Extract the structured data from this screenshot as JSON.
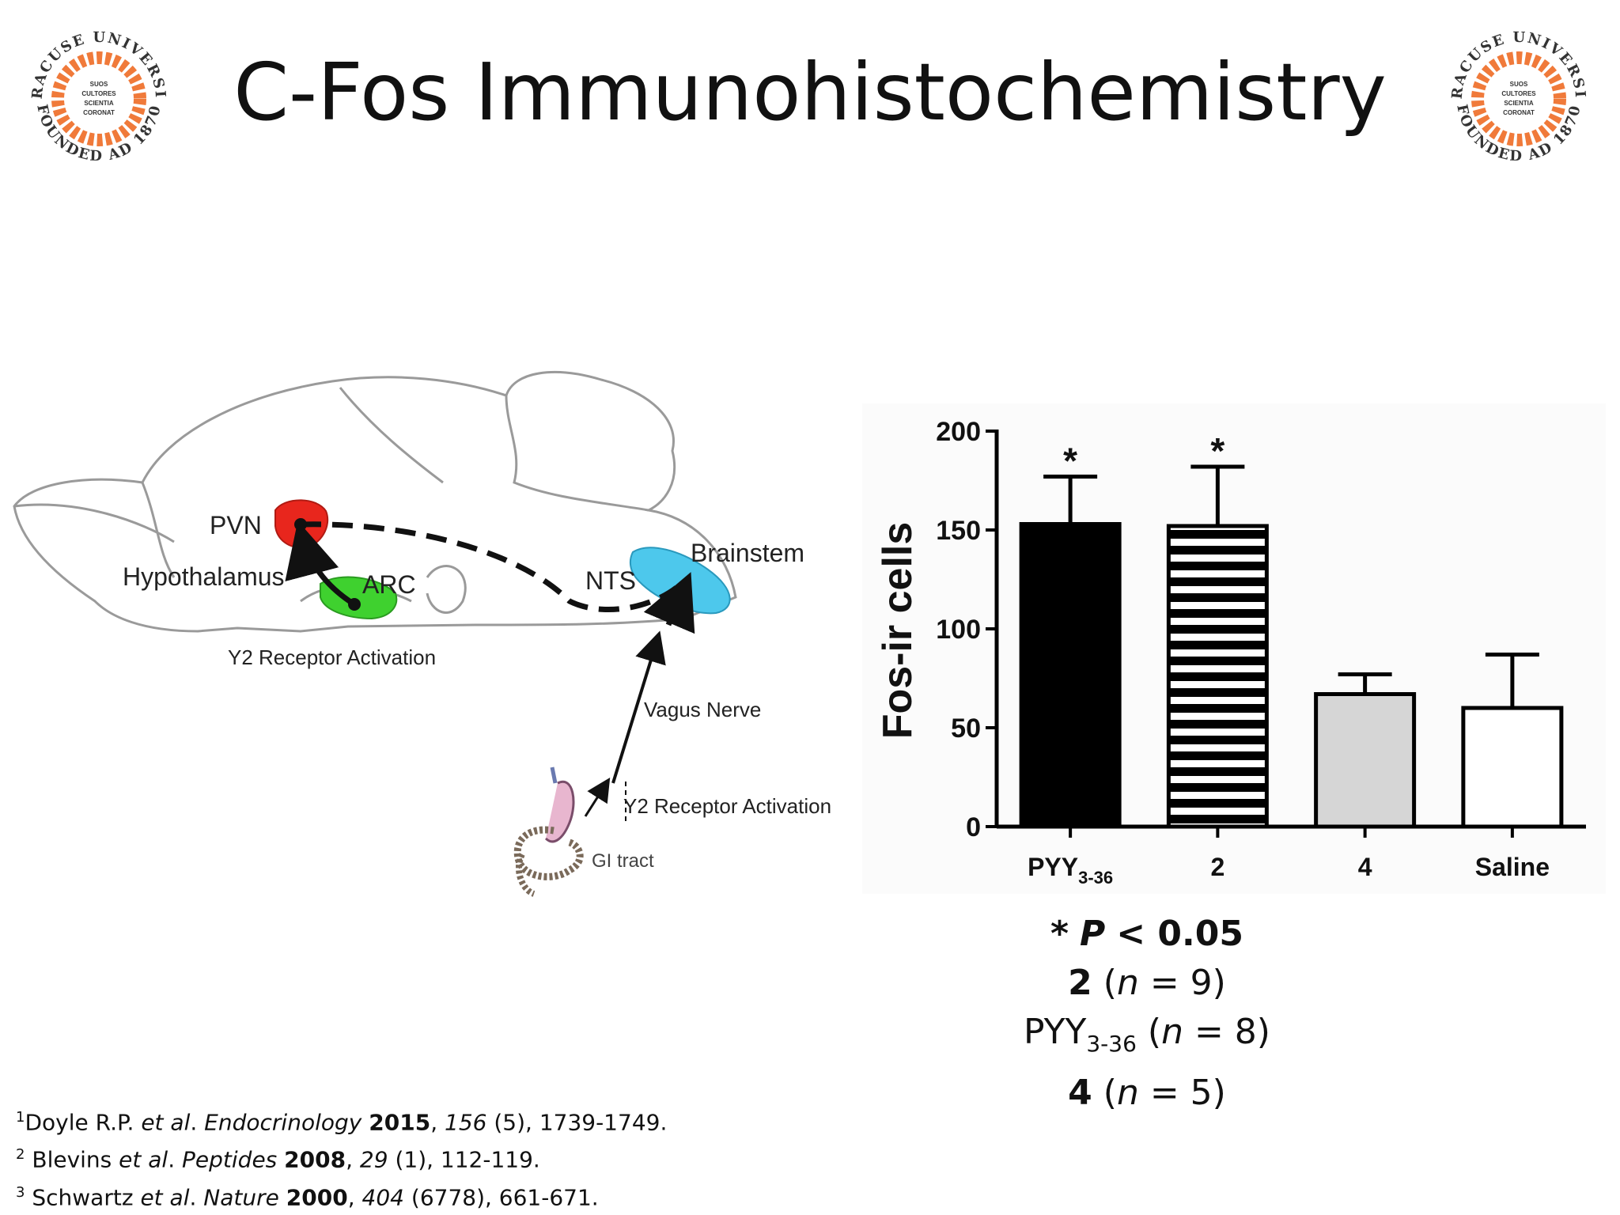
{
  "title": "C-Fos Immunohistochemistry",
  "seal": {
    "ring_text": "SYRACUSE UNIVERSITY",
    "founded_text": "FOUNDED AD 1870",
    "motto": [
      "SUOS",
      "CULTORES",
      "SCIENTIA",
      "CORONAT"
    ],
    "colors": {
      "ring": "#f07a3a",
      "text": "#333333"
    }
  },
  "diagram": {
    "labels": {
      "pvn": "PVN",
      "hypothalamus": "Hypothalamus",
      "arc": "ARC",
      "nts": "NTS",
      "brainstem": "Brainstem",
      "y2_upper": "Y2 Receptor Activation",
      "vagus": "Vagus Nerve",
      "y2_lower": "Y2 Receptor Activation",
      "gi": "GI tract"
    },
    "colors": {
      "pvn": "#e8261d",
      "arc": "#3fd12f",
      "brainstem": "#4dc8ec"
    }
  },
  "chart_data": {
    "type": "bar",
    "ylabel": "Fos-ir cells",
    "ylim": [
      0,
      200
    ],
    "yticks": [
      "0",
      "50",
      "100",
      "150",
      "200"
    ],
    "categories": [
      "PYY3-36",
      "2",
      "4",
      "Saline"
    ],
    "tick_labels": [
      {
        "main": "PYY",
        "sub": "3-36"
      },
      {
        "main": "2",
        "sub": ""
      },
      {
        "main": "4",
        "sub": ""
      },
      {
        "main": "Saline",
        "sub": ""
      }
    ],
    "values": [
      153,
      152,
      67,
      60
    ],
    "error_upper": [
      177,
      182,
      77,
      87
    ],
    "significance": [
      "*",
      "*",
      "",
      ""
    ],
    "fills": [
      "solid-black",
      "horizontal-stripes",
      "light-gray",
      "white"
    ],
    "colors": {
      "black": "#000000",
      "gray": "#d6d6d6",
      "white": "#ffffff"
    },
    "grid": false,
    "legend": "none"
  },
  "stats": {
    "line1": {
      "star": "*",
      "p": "P",
      "rest": "< 0.05"
    },
    "line2": {
      "name": "2",
      "open": "(",
      "n": "n",
      "eq": "= 9)"
    },
    "line3": {
      "name": "PYY",
      "sub": "3-36",
      "open": "(",
      "n": "n",
      "eq": "= 8)"
    },
    "line4": {
      "name": "4",
      "open": "(",
      "n": "n",
      "eq": "= 5)"
    }
  },
  "references": [
    {
      "num": "1",
      "authors": "Doyle R.P.",
      "etal": "et al",
      "dot": ".",
      "journal": "Endocrinology",
      "year": "2015",
      "volume": "156",
      "rest": "(5), 1739-1749."
    },
    {
      "num": "2",
      "authors": "Blevins",
      "etal": "et al",
      "dot": ".",
      "journal": "Peptides",
      "year": "2008",
      "volume": "29",
      "rest": "(1), 112-119."
    },
    {
      "num": "3",
      "authors": "Schwartz",
      "etal": "et al",
      "dot": ".",
      "journal": "Nature",
      "year": "2000",
      "volume": "404",
      "rest": "(6778), 661-671."
    }
  ]
}
